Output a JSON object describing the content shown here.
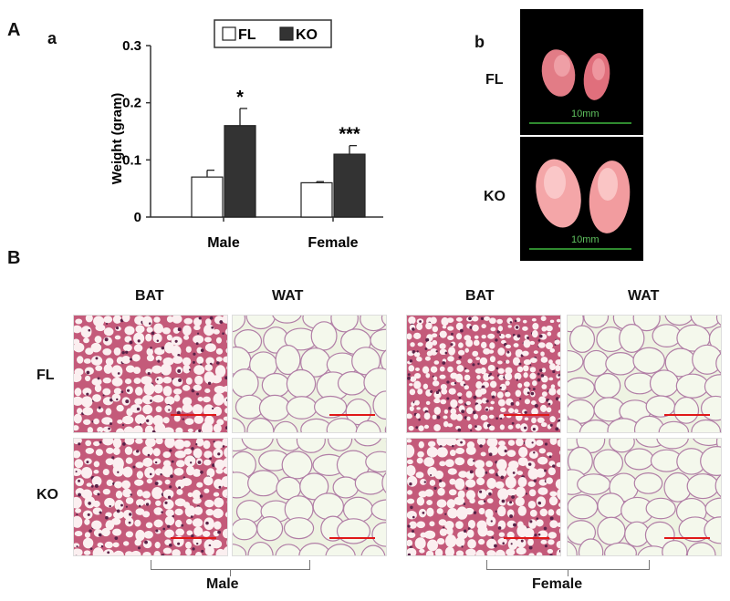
{
  "panels": {
    "A": "A",
    "A_sub_a": "a",
    "A_sub_b": "b",
    "B": "B"
  },
  "chart_data": {
    "type": "bar",
    "categories": [
      "Male",
      "Female"
    ],
    "series": [
      {
        "name": "FL",
        "values": [
          0.07,
          0.06
        ],
        "errors": [
          0.012,
          0.002
        ],
        "color": "#ffffff"
      },
      {
        "name": "KO",
        "values": [
          0.16,
          0.11
        ],
        "errors": [
          0.03,
          0.015
        ],
        "color": "#333333"
      }
    ],
    "significance": [
      "*",
      "***"
    ],
    "ylabel": "Weight (gram)",
    "ylim": [
      0,
      0.3
    ],
    "yticks": [
      "0",
      "0.1",
      "0.2",
      "0.3"
    ],
    "ytick_values": [
      0,
      0.1,
      0.2,
      0.3
    ],
    "legend": {
      "placement": "top",
      "entries": [
        "FL",
        "KO"
      ]
    },
    "grid": false
  },
  "photo_panel": {
    "rows": [
      "FL",
      "KO"
    ],
    "scale_label": "10mm"
  },
  "histology": {
    "columns": [
      "BAT",
      "WAT",
      "BAT",
      "WAT"
    ],
    "rows": [
      "FL",
      "KO"
    ],
    "groups": [
      "Male",
      "Female"
    ]
  },
  "colors": {
    "bat_tissue": "#c45a7a",
    "wat_background": "#eef3e2",
    "scale_bar": "#e01818",
    "tissue_photo": "#f4a6a8"
  }
}
